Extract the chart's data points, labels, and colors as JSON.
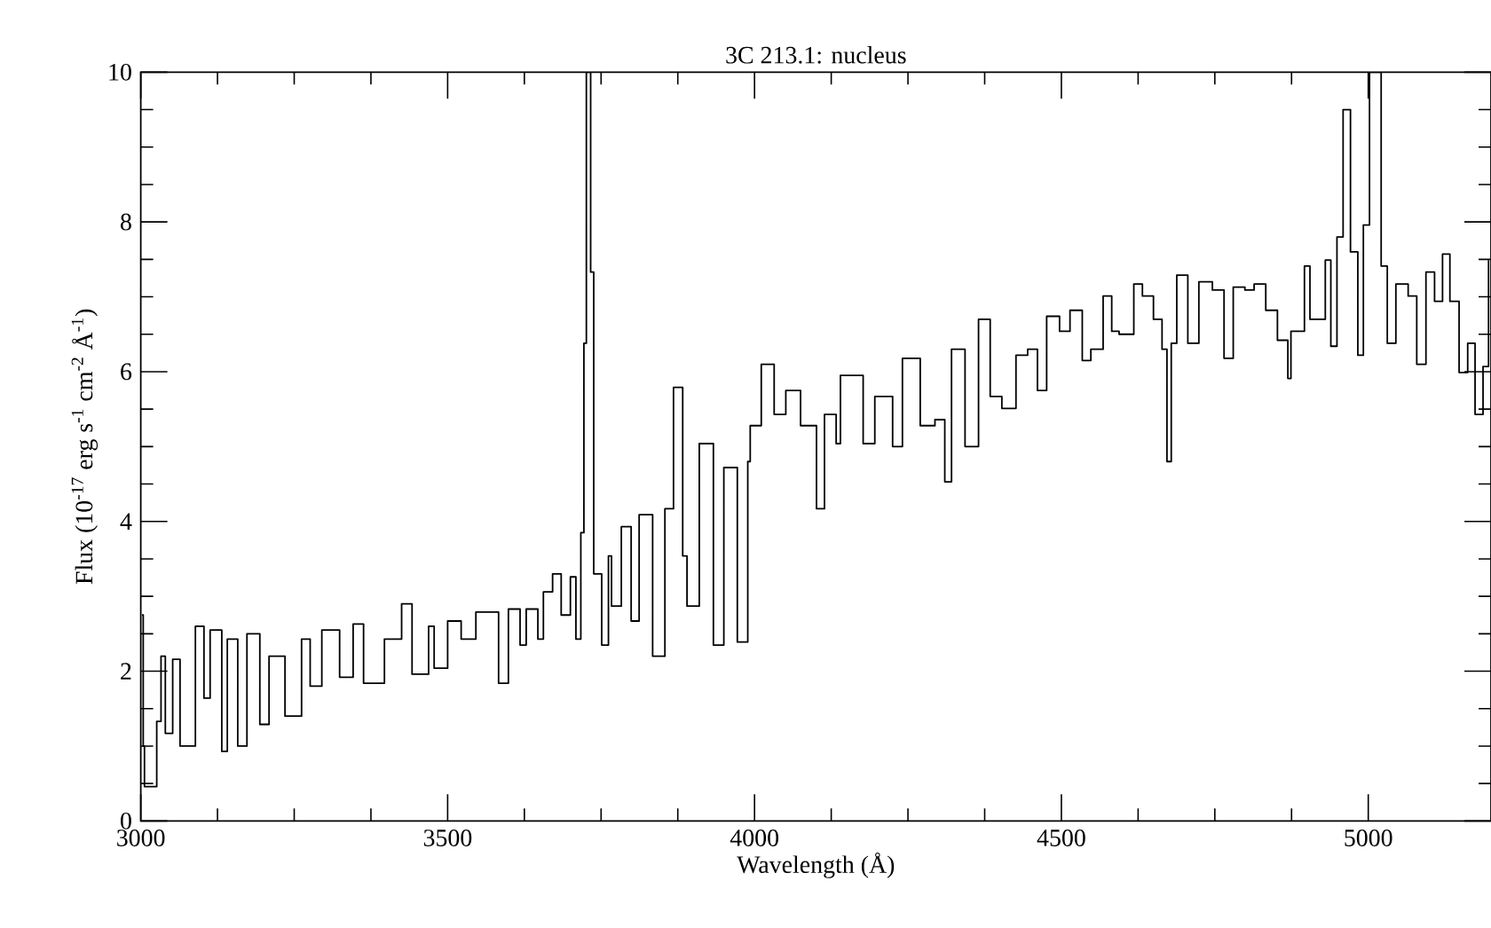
{
  "chart_data": {
    "type": "step",
    "title": "3C 213.1: nucleus",
    "xlabel": "Wavelength (Å)",
    "ylabel": "Flux (10$^{-17}$ erg s$^{-1}$ cm$^{-2}$ Å$^{-1}$)",
    "color": "#000000",
    "xlim": [
      3000,
      5200
    ],
    "ylim": [
      0,
      10
    ],
    "xticks": [
      3000,
      3500,
      4000,
      4500,
      5000
    ],
    "yticks": [
      0,
      2,
      4,
      6,
      8,
      10
    ],
    "grid": false,
    "x": [
      3002,
      3004,
      3006,
      3021,
      3026,
      3033,
      3040,
      3052,
      3064,
      3089,
      3103,
      3113,
      3132,
      3141,
      3158,
      3173,
      3194,
      3209,
      3235,
      3262,
      3276,
      3295,
      3324,
      3346,
      3363,
      3397,
      3425,
      3442,
      3469,
      3478,
      3500,
      3522,
      3546,
      3583,
      3599,
      3618,
      3628,
      3647,
      3656,
      3671,
      3685,
      3700,
      3709,
      3717,
      3722,
      3726,
      3731,
      3733,
      3738,
      3751,
      3762,
      3767,
      3783,
      3799,
      3812,
      3834,
      3854,
      3868,
      3883,
      3890,
      3910,
      3933,
      3950,
      3972,
      3989,
      3993,
      4011,
      4032,
      4051,
      4061,
      4075,
      4085,
      4101,
      4114,
      4133,
      4140,
      4177,
      4196,
      4225,
      4241,
      4270,
      4294,
      4310,
      4321,
      4343,
      4365,
      4384,
      4403,
      4426,
      4445,
      4461,
      4476,
      4497,
      4514,
      4534,
      4548,
      4568,
      4582,
      4594,
      4618,
      4632,
      4650,
      4664,
      4672,
      4679,
      4688,
      4706,
      4724,
      4746,
      4765,
      4780,
      4799,
      4814,
      4833,
      4852,
      4869,
      4874,
      4896,
      4905,
      4930,
      4939,
      4949,
      4959,
      4971,
      4983,
      4992,
      5002,
      5014,
      5021,
      5031,
      5045,
      5065,
      5079,
      5094,
      5108,
      5121,
      5133,
      5148,
      5162,
      5174,
      5187,
      5196
    ],
    "values": [
      2.75,
      1.0,
      0.46,
      0.46,
      1.33,
      2.2,
      1.17,
      2.16,
      1.0,
      2.6,
      1.64,
      2.55,
      0.93,
      2.43,
      1.0,
      2.5,
      1.29,
      2.2,
      1.4,
      2.43,
      1.8,
      2.55,
      1.92,
      2.63,
      1.84,
      2.43,
      2.9,
      1.96,
      2.6,
      2.04,
      2.67,
      2.43,
      2.79,
      1.84,
      2.83,
      2.35,
      2.83,
      2.43,
      3.06,
      3.3,
      2.75,
      3.26,
      2.43,
      3.85,
      6.38,
      10,
      10,
      7.33,
      3.3,
      2.35,
      3.54,
      2.87,
      3.93,
      2.67,
      4.09,
      2.2,
      4.17,
      5.79,
      3.54,
      2.87,
      5.04,
      2.35,
      4.72,
      2.39,
      4.8,
      5.28,
      6.1,
      5.43,
      5.75,
      5.75,
      5.28,
      5.28,
      4.17,
      5.43,
      5.04,
      5.95,
      5.04,
      5.67,
      5.0,
      6.18,
      5.28,
      5.36,
      4.53,
      6.3,
      5.0,
      6.7,
      5.67,
      5.51,
      6.22,
      6.3,
      5.75,
      6.74,
      6.54,
      6.82,
      6.15,
      6.3,
      7.01,
      6.54,
      6.5,
      7.17,
      7.01,
      6.7,
      6.3,
      4.8,
      6.38,
      7.29,
      6.38,
      7.2,
      7.09,
      6.18,
      7.13,
      7.09,
      7.17,
      6.82,
      6.42,
      5.91,
      6.54,
      7.41,
      6.7,
      7.49,
      6.34,
      7.8,
      9.5,
      7.6,
      6.22,
      7.96,
      10,
      10,
      7.41,
      6.38,
      7.17,
      7.01,
      6.1,
      7.33,
      6.94,
      7.57,
      6.94,
      5.99,
      6.38,
      5.43,
      6.07,
      7.49
    ]
  }
}
